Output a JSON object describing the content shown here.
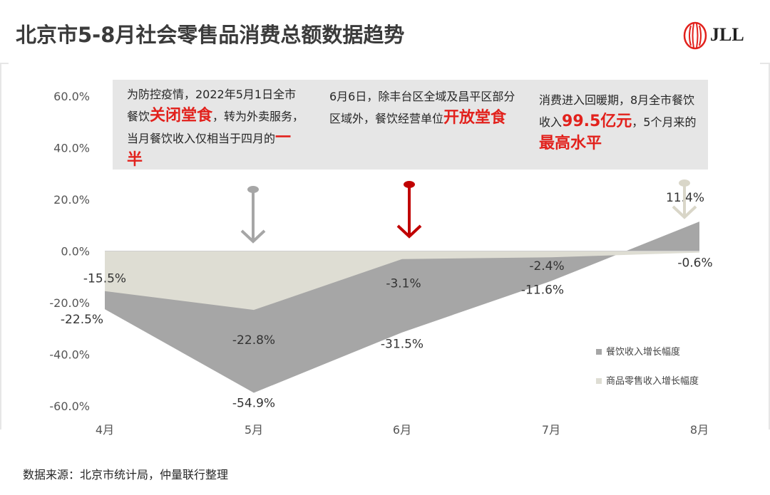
{
  "title": "北京市5-8月社会零售品消费总额数据趋势",
  "logo_text": "JLL",
  "source": "数据来源：北京市统计局，仲量联行整理",
  "annotations": [
    {
      "parts": [
        {
          "t": "为防控疫情，2022年5月1日全市餐饮"
        },
        {
          "t": "关闭堂食",
          "hl": true
        },
        {
          "t": "，转为外卖服务，当月餐饮收入仅相当于四月的"
        },
        {
          "t": "一半",
          "hl": true
        }
      ]
    },
    {
      "parts": [
        {
          "t": "6月6日，除丰台区全域及昌平区部分区域外，餐饮经营单位"
        },
        {
          "t": "开放堂食",
          "hl": true
        }
      ]
    },
    {
      "parts": [
        {
          "t": "消费进入回暖期，8月全市餐饮收入"
        },
        {
          "t": "99.5亿元",
          "hl": true
        },
        {
          "t": "，5个月来的"
        },
        {
          "t": "最高水平",
          "hl": true
        }
      ]
    }
  ],
  "colors": {
    "series1": "#a6a6a6",
    "series2": "#deddd3",
    "highlight": "#e2211c",
    "arrow_gray": "#a6a6a6",
    "arrow_red": "#c00000",
    "arrow_light": "#d9d6c8"
  },
  "chart_data": {
    "type": "area",
    "categories": [
      "4月",
      "5月",
      "6月",
      "7月",
      "8月"
    ],
    "ylim": [
      -60,
      60
    ],
    "y_ticks": [
      "60.0%",
      "40.0%",
      "20.0%",
      "0.0%",
      "-20.0%",
      "-40.0%",
      "-60.0%"
    ],
    "series": [
      {
        "name": "餐饮收入增长幅度",
        "values": [
          -22.5,
          -54.9,
          -31.5,
          -11.6,
          11.4
        ],
        "labels": [
          "-22.5%",
          "-54.9%",
          "-31.5%",
          "-11.6%",
          "11.4%"
        ]
      },
      {
        "name": "商品零售收入增长幅度",
        "values": [
          -15.5,
          -22.8,
          -3.1,
          -2.4,
          -0.6
        ],
        "labels": [
          "-15.5%",
          "-22.8%",
          "-3.1%",
          "-2.4%",
          "-0.6%"
        ]
      }
    ],
    "grid": false,
    "legend": "bottom-right"
  }
}
